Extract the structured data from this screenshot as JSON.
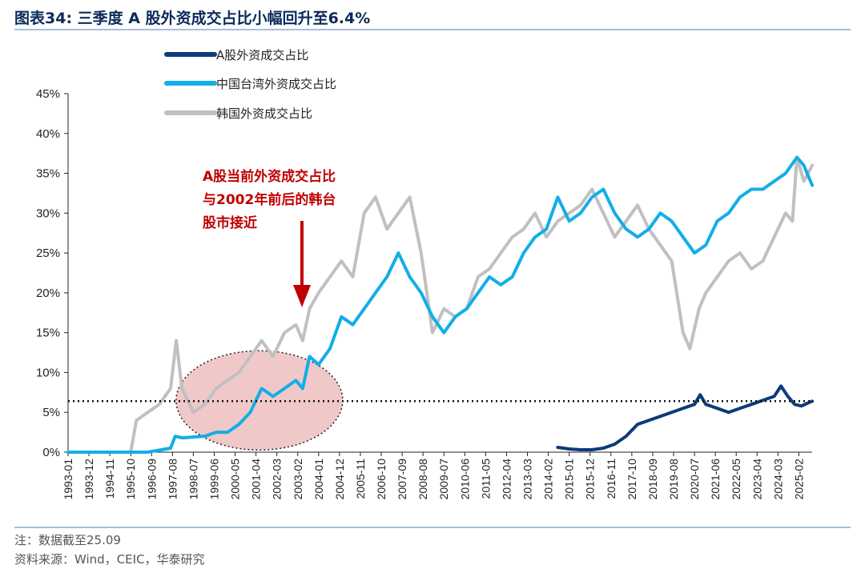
{
  "header": {
    "title": "图表34:  三季度 A 股外资成交占比小幅回升至6.4%"
  },
  "footer": {
    "note": "注：数据截至25.09",
    "source": "资料来源：Wind，CEIC，华泰研究"
  },
  "colors": {
    "a_share": "#0d3b7a",
    "taiwan": "#12aee8",
    "korea": "#c0c0c0",
    "annotation": "#c00000",
    "ellipse_fill": "#e8a3a3"
  },
  "chart_data": {
    "type": "line",
    "title": "三季度 A 股外资成交占比小幅回升至6.4%",
    "xlabel": "",
    "ylabel": "",
    "ylim": [
      0,
      45
    ],
    "yticks": [
      "0%",
      "5%",
      "10%",
      "15%",
      "20%",
      "25%",
      "30%",
      "35%",
      "40%",
      "45%"
    ],
    "x_tick_labels": [
      "1993-01",
      "1993-12",
      "1994-11",
      "1995-10",
      "1996-09",
      "1997-08",
      "1998-07",
      "1999-06",
      "2000-05",
      "2001-04",
      "2002-03",
      "2003-02",
      "2004-01",
      "2004-12",
      "2005-11",
      "2006-10",
      "2007-09",
      "2008-08",
      "2009-07",
      "2010-06",
      "2011-05",
      "2012-04",
      "2013-03",
      "2014-02",
      "2015-01",
      "2015-12",
      "2016-11",
      "2017-10",
      "2018-09",
      "2019-08",
      "2020-07",
      "2021-06",
      "2022-05",
      "2023-04",
      "2024-03",
      "2025-02"
    ],
    "x_range": [
      "1993-01",
      "2025-09"
    ],
    "reference_line": {
      "value": 6.4,
      "style": "dotted"
    },
    "legend": [
      "A股外资成交占比",
      "中国台湾外资成交占比",
      "韩国外资成交占比"
    ],
    "legend_position": "top-left",
    "series": [
      {
        "name": "A股外资成交占比",
        "points": [
          [
            2014.5,
            0.6
          ],
          [
            2015.0,
            0.4
          ],
          [
            2015.5,
            0.3
          ],
          [
            2016.0,
            0.3
          ],
          [
            2016.5,
            0.5
          ],
          [
            2017.0,
            1.0
          ],
          [
            2017.5,
            2.0
          ],
          [
            2018.0,
            3.5
          ],
          [
            2018.5,
            4.0
          ],
          [
            2019.0,
            4.5
          ],
          [
            2019.5,
            5.0
          ],
          [
            2020.0,
            5.5
          ],
          [
            2020.5,
            6.0
          ],
          [
            2020.75,
            7.2
          ],
          [
            2021.0,
            6.0
          ],
          [
            2021.5,
            5.5
          ],
          [
            2022.0,
            5.0
          ],
          [
            2022.5,
            5.5
          ],
          [
            2023.0,
            6.0
          ],
          [
            2023.5,
            6.5
          ],
          [
            2024.0,
            7.0
          ],
          [
            2024.3,
            8.3
          ],
          [
            2024.6,
            7.0
          ],
          [
            2024.9,
            6.0
          ],
          [
            2025.2,
            5.8
          ],
          [
            2025.5,
            6.2
          ],
          [
            2025.67,
            6.4
          ]
        ]
      },
      {
        "name": "中国台湾外资成交占比",
        "points": [
          [
            1993.0,
            0
          ],
          [
            1995.75,
            0
          ],
          [
            1996.5,
            0
          ],
          [
            1997.5,
            0.5
          ],
          [
            1997.7,
            2.0
          ],
          [
            1998.0,
            1.8
          ],
          [
            1999.0,
            2.0
          ],
          [
            1999.5,
            2.5
          ],
          [
            2000.0,
            2.5
          ],
          [
            2000.5,
            3.5
          ],
          [
            2001.0,
            5.0
          ],
          [
            2001.5,
            8.0
          ],
          [
            2002.0,
            7.0
          ],
          [
            2002.5,
            8.0
          ],
          [
            2003.0,
            9.0
          ],
          [
            2003.3,
            8.0
          ],
          [
            2003.6,
            12.0
          ],
          [
            2004.0,
            11.0
          ],
          [
            2004.5,
            13.0
          ],
          [
            2005.0,
            17.0
          ],
          [
            2005.5,
            16.0
          ],
          [
            2006.0,
            18.0
          ],
          [
            2006.5,
            20.0
          ],
          [
            2007.0,
            22.0
          ],
          [
            2007.5,
            25.0
          ],
          [
            2008.0,
            22.0
          ],
          [
            2008.5,
            20.0
          ],
          [
            2009.0,
            17.0
          ],
          [
            2009.5,
            15.0
          ],
          [
            2010.0,
            17.0
          ],
          [
            2010.5,
            18.0
          ],
          [
            2011.0,
            20.0
          ],
          [
            2011.5,
            22.0
          ],
          [
            2012.0,
            21.0
          ],
          [
            2012.5,
            22.0
          ],
          [
            2013.0,
            25.0
          ],
          [
            2013.5,
            27.0
          ],
          [
            2014.0,
            28.0
          ],
          [
            2014.5,
            32.0
          ],
          [
            2015.0,
            29.0
          ],
          [
            2015.5,
            30.0
          ],
          [
            2016.0,
            32.0
          ],
          [
            2016.5,
            33.0
          ],
          [
            2017.0,
            30.0
          ],
          [
            2017.5,
            28.0
          ],
          [
            2018.0,
            27.0
          ],
          [
            2018.5,
            28.0
          ],
          [
            2019.0,
            30.0
          ],
          [
            2019.5,
            29.0
          ],
          [
            2020.0,
            27.0
          ],
          [
            2020.5,
            25.0
          ],
          [
            2021.0,
            26.0
          ],
          [
            2021.5,
            29.0
          ],
          [
            2022.0,
            30.0
          ],
          [
            2022.5,
            32.0
          ],
          [
            2023.0,
            33.0
          ],
          [
            2023.5,
            33.0
          ],
          [
            2024.0,
            34.0
          ],
          [
            2024.5,
            35.0
          ],
          [
            2025.0,
            37.0
          ],
          [
            2025.3,
            36.0
          ],
          [
            2025.67,
            33.5
          ]
        ]
      },
      {
        "name": "韩国外资成交占比",
        "points": [
          [
            1993.0,
            0
          ],
          [
            1995.75,
            0
          ],
          [
            1996.0,
            4.0
          ],
          [
            1996.5,
            5.0
          ],
          [
            1997.0,
            6.0
          ],
          [
            1997.5,
            8.0
          ],
          [
            1997.75,
            14.0
          ],
          [
            1998.0,
            8.0
          ],
          [
            1998.5,
            5.0
          ],
          [
            1999.0,
            6.0
          ],
          [
            1999.5,
            8.0
          ],
          [
            2000.0,
            9.0
          ],
          [
            2000.5,
            10.0
          ],
          [
            2001.0,
            12.0
          ],
          [
            2001.5,
            14.0
          ],
          [
            2002.0,
            12.0
          ],
          [
            2002.5,
            15.0
          ],
          [
            2003.0,
            16.0
          ],
          [
            2003.3,
            14.0
          ],
          [
            2003.6,
            18.0
          ],
          [
            2004.0,
            20.0
          ],
          [
            2004.5,
            22.0
          ],
          [
            2005.0,
            24.0
          ],
          [
            2005.5,
            22.0
          ],
          [
            2006.0,
            30.0
          ],
          [
            2006.5,
            32.0
          ],
          [
            2007.0,
            28.0
          ],
          [
            2007.5,
            30.0
          ],
          [
            2008.0,
            32.0
          ],
          [
            2008.5,
            25.0
          ],
          [
            2009.0,
            15.0
          ],
          [
            2009.5,
            18.0
          ],
          [
            2010.0,
            17.0
          ],
          [
            2010.5,
            18.0
          ],
          [
            2011.0,
            22.0
          ],
          [
            2011.5,
            23.0
          ],
          [
            2012.0,
            25.0
          ],
          [
            2012.5,
            27.0
          ],
          [
            2013.0,
            28.0
          ],
          [
            2013.5,
            30.0
          ],
          [
            2014.0,
            27.0
          ],
          [
            2014.5,
            29.0
          ],
          [
            2015.0,
            30.0
          ],
          [
            2015.5,
            31.0
          ],
          [
            2016.0,
            33.0
          ],
          [
            2016.5,
            30.0
          ],
          [
            2017.0,
            27.0
          ],
          [
            2017.5,
            29.0
          ],
          [
            2018.0,
            31.0
          ],
          [
            2018.5,
            28.0
          ],
          [
            2019.0,
            26.0
          ],
          [
            2019.5,
            24.0
          ],
          [
            2020.0,
            15.0
          ],
          [
            2020.3,
            13.0
          ],
          [
            2020.7,
            18.0
          ],
          [
            2021.0,
            20.0
          ],
          [
            2021.5,
            22.0
          ],
          [
            2022.0,
            24.0
          ],
          [
            2022.5,
            25.0
          ],
          [
            2023.0,
            23.0
          ],
          [
            2023.5,
            24.0
          ],
          [
            2024.0,
            27.0
          ],
          [
            2024.5,
            30.0
          ],
          [
            2024.8,
            29.0
          ],
          [
            2025.0,
            37.0
          ],
          [
            2025.3,
            34.0
          ],
          [
            2025.67,
            36.0
          ]
        ]
      }
    ],
    "annotations": [
      {
        "text_lines": [
          "A股当前外资成交占比",
          "与2002年前后的韩台",
          "股市接近"
        ]
      }
    ]
  }
}
